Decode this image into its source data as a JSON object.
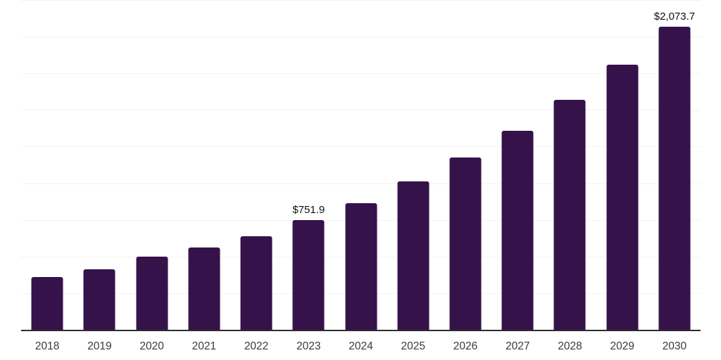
{
  "chart_data": {
    "type": "bar",
    "title": "",
    "xlabel": "",
    "ylabel": "",
    "categories": [
      "2018",
      "2019",
      "2020",
      "2021",
      "2022",
      "2023",
      "2024",
      "2025",
      "2026",
      "2027",
      "2028",
      "2029",
      "2030"
    ],
    "values": [
      366,
      418,
      504,
      568,
      645,
      751.9,
      868,
      1015,
      1178,
      1362,
      1575,
      1813,
      2073.7
    ],
    "annotations": [
      {
        "category": "2023",
        "text": "$751.9"
      },
      {
        "category": "2030",
        "text": "$2,073.7"
      }
    ],
    "ylim": [
      0,
      2250
    ],
    "grid": true,
    "grid_interval": 250,
    "legend": false,
    "bar_color": "#36124b",
    "grid_color": "#f2f2f2",
    "axis_color": "#2e2e2e",
    "value_label_color": "#0f0f0f",
    "tick_label_color": "#3a3a3a"
  }
}
